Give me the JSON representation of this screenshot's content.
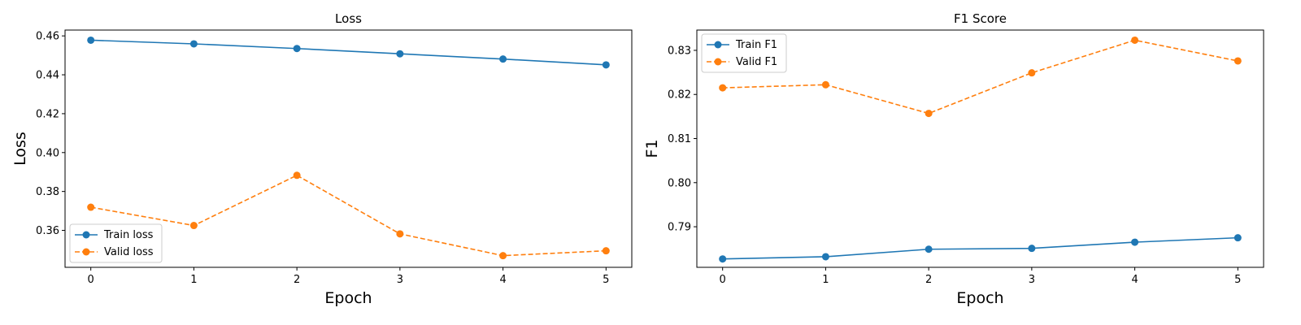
{
  "chart_data": [
    {
      "type": "line",
      "title": "Loss",
      "xlabel": "Epoch",
      "ylabel": "Loss",
      "x": [
        0,
        1,
        2,
        3,
        4,
        5
      ],
      "xlim": [
        -0.25,
        5.25
      ],
      "ylim": [
        0.341,
        0.463
      ],
      "xticks": [
        0,
        1,
        2,
        3,
        4,
        5
      ],
      "yticks": [
        0.36,
        0.38,
        0.4,
        0.42,
        0.44,
        0.46
      ],
      "ytick_labels": [
        "0.36",
        "0.38",
        "0.40",
        "0.42",
        "0.44",
        "0.46"
      ],
      "grid": false,
      "legend_position": "lower-left",
      "series": [
        {
          "name": "Train loss",
          "color": "#1f77b4",
          "dashed": false,
          "values": [
            0.4578,
            0.4559,
            0.4535,
            0.4508,
            0.4481,
            0.4451
          ]
        },
        {
          "name": "Valid loss",
          "color": "#ff7f0e",
          "dashed": true,
          "values": [
            0.3719,
            0.3625,
            0.3883,
            0.3582,
            0.347,
            0.3495
          ]
        }
      ]
    },
    {
      "type": "line",
      "title": "F1 Score",
      "xlabel": "Epoch",
      "ylabel": "F1",
      "x": [
        0,
        1,
        2,
        3,
        4,
        5
      ],
      "xlim": [
        -0.25,
        5.25
      ],
      "ylim": [
        0.7808,
        0.8346
      ],
      "xticks": [
        0,
        1,
        2,
        3,
        4,
        5
      ],
      "yticks": [
        0.79,
        0.8,
        0.81,
        0.82,
        0.83
      ],
      "ytick_labels": [
        "0.79",
        "0.80",
        "0.81",
        "0.82",
        "0.83"
      ],
      "grid": false,
      "legend_position": "upper-left",
      "series": [
        {
          "name": "Train F1",
          "color": "#1f77b4",
          "dashed": false,
          "values": [
            0.7827,
            0.7832,
            0.7849,
            0.7851,
            0.7865,
            0.7875
          ]
        },
        {
          "name": "Valid F1",
          "color": "#ff7f0e",
          "dashed": true,
          "values": [
            0.8215,
            0.8222,
            0.8157,
            0.8249,
            0.8323,
            0.8276
          ]
        }
      ]
    }
  ]
}
